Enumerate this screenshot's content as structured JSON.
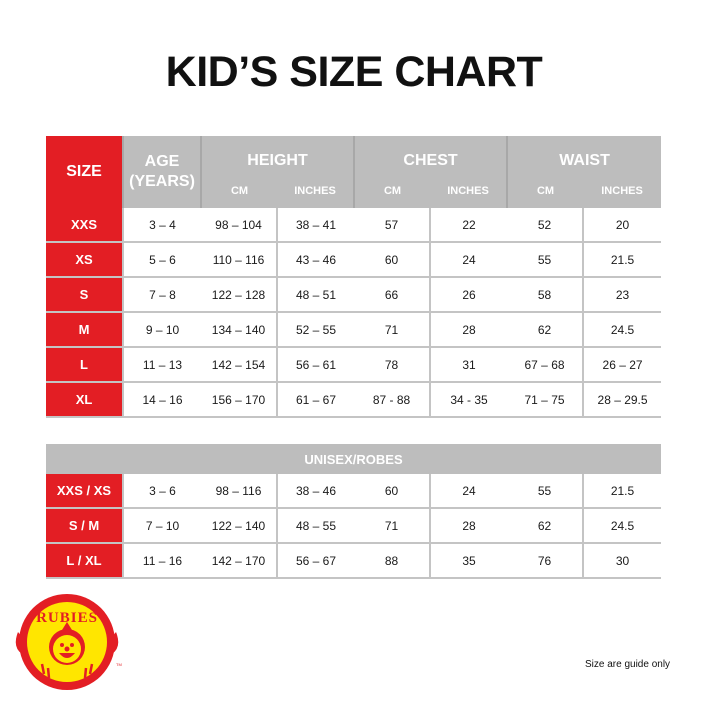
{
  "title": "KID’S SIZE CHART",
  "headers": {
    "size": "SIZE",
    "age": "AGE",
    "age_unit": "(YEARS)",
    "height": "HEIGHT",
    "chest": "CHEST",
    "waist": "WAIST",
    "cm": "CM",
    "inches": "INCHES"
  },
  "rows": [
    [
      "XXS",
      "3 – 4",
      "98 – 104",
      "38 – 41",
      "57",
      "22",
      "52",
      "20"
    ],
    [
      "XS",
      "5 – 6",
      "110 – 116",
      "43 – 46",
      "60",
      "24",
      "55",
      "21.5"
    ],
    [
      "S",
      "7 – 8",
      "122 – 128",
      "48 – 51",
      "66",
      "26",
      "58",
      "23"
    ],
    [
      "M",
      "9 – 10",
      "134 – 140",
      "52 – 55",
      "71",
      "28",
      "62",
      "24.5"
    ],
    [
      "L",
      "11 – 13",
      "142 – 154",
      "56 – 61",
      "78",
      "31",
      "67 – 68",
      "26 – 27"
    ],
    [
      "XL",
      "14 – 16",
      "156 – 170",
      "61 – 67",
      "87 - 88",
      "34 - 35",
      "71 – 75",
      "28 – 29.5"
    ]
  ],
  "unisex": {
    "header": "UNISEX/ROBES",
    "rows": [
      [
        "XXS / XS",
        "3 – 6",
        "98 – 116",
        "38 – 46",
        "60",
        "24",
        "55",
        "21.5"
      ],
      [
        "S / M",
        "7 – 10",
        "122 – 140",
        "48 – 55",
        "71",
        "28",
        "62",
        "24.5"
      ],
      [
        "L / XL",
        "11 – 16",
        "142 – 170",
        "56 – 67",
        "88",
        "35",
        "76",
        "30"
      ]
    ]
  },
  "logo": {
    "text": "RUBIES",
    "tm": "TM"
  },
  "note": "Size are guide only",
  "colors": {
    "red": "#e31e24",
    "gray": "#bdbdbd",
    "logo_yellow": "#ffe600"
  }
}
